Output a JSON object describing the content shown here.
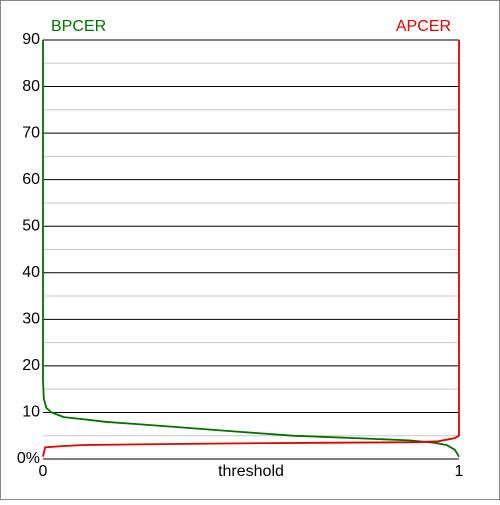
{
  "chart_data": {
    "type": "line",
    "x_label": "threshold",
    "xlim": [
      0,
      1
    ],
    "xticks": [
      0,
      1
    ],
    "ylim": [
      0,
      90
    ],
    "yticks": [
      {
        "value": 0,
        "label": "0%"
      },
      10,
      20,
      30,
      40,
      50,
      60,
      70,
      80,
      90
    ],
    "minor_yticks": [
      5,
      15,
      25,
      35,
      45,
      55,
      65,
      75,
      85
    ],
    "grid": true,
    "series": [
      {
        "name": "BPCER",
        "color": "#007000",
        "legend": "left",
        "x": [
          0,
          0,
          0.002,
          0.008,
          0.02,
          0.05,
          0.1,
          0.15,
          0.3,
          0.45,
          0.6,
          0.75,
          0.88,
          0.94,
          0.97,
          0.99,
          1
        ],
        "values": [
          90,
          17,
          13,
          11,
          10,
          9,
          8.5,
          8,
          7,
          6,
          5,
          4.5,
          4,
          3.5,
          3,
          2,
          0.5
        ]
      },
      {
        "name": "APCER",
        "color": "#e00000",
        "legend": "right",
        "x": [
          0,
          0.005,
          0.05,
          0.1,
          0.4,
          0.7,
          0.9,
          0.95,
          0.99,
          1,
          1
        ],
        "values": [
          0.5,
          2.5,
          2.8,
          3,
          3.3,
          3.5,
          3.6,
          3.8,
          4.5,
          5,
          90
        ]
      }
    ]
  }
}
